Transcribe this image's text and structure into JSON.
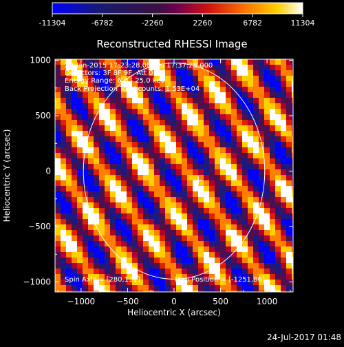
{
  "colorbar": {
    "tick_labels": [
      "-11304",
      "-6782",
      "-2260",
      "2260",
      "6782",
      "11304"
    ],
    "range": [
      -11304,
      11304
    ]
  },
  "chart_data": {
    "type": "heatmap",
    "title": "Reconstructed RHESSI Image",
    "xlabel": "Heliocentric X (arcsec)",
    "ylabel": "Heliocentric Y (arcsec)",
    "xlim": [
      -1280,
      1280
    ],
    "ylim": [
      -1090,
      1010
    ],
    "x_ticks": [
      -1000,
      -500,
      0,
      500,
      1000
    ],
    "x_tick_labels": [
      "−1000",
      "−500",
      "0",
      "500",
      "1000"
    ],
    "y_ticks": [
      1000,
      500,
      0,
      -500,
      -1000
    ],
    "y_tick_labels": [
      "1000",
      "500",
      "0",
      "−500",
      "−1000"
    ],
    "solar_limb": {
      "center": [
        0,
        0
      ],
      "radius_arcsec": 975
    },
    "plus_marker": [
      261,
      -86
    ],
    "pattern": "diagonal periodic stripes spanning the full colour range",
    "annotations": [
      "29-Jan-2015 17:23:28.000 to 17:37:28.000",
      "Detectors: 3F 8F 9F, Att 0",
      "Energy Range: 6.0 - 25.0 keV",
      "Back Projection   Total counts: 1.53E+04",
      "Spin Axis = [280,111]",
      "Map Position = [-1251,86]"
    ]
  },
  "footer": {
    "timestamp": "24-Jul-2017 01:48"
  },
  "colors": {
    "background": "#000000",
    "foreground": "#ffffff"
  }
}
